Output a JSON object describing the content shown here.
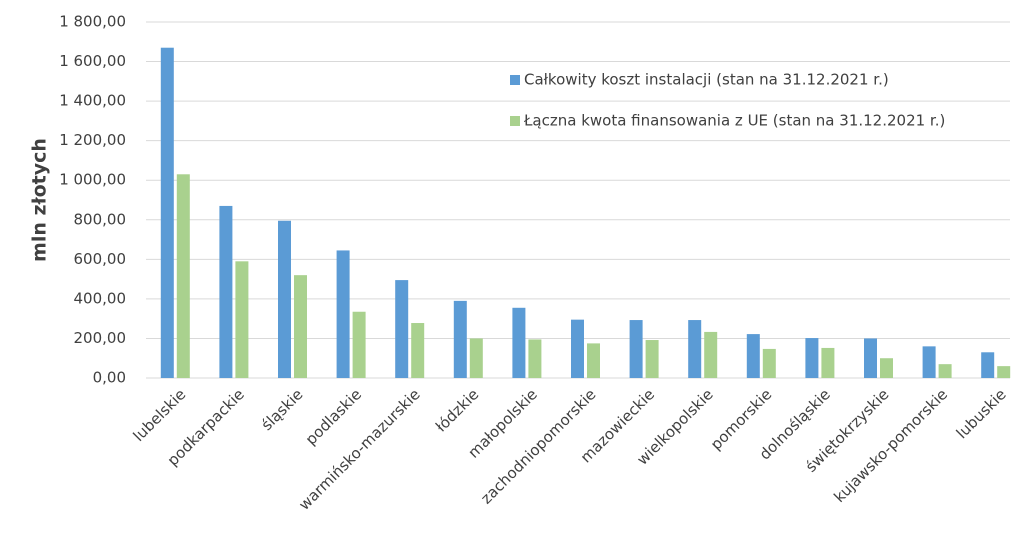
{
  "chart_data": {
    "type": "bar",
    "y_label": "mln złotych",
    "categories": [
      "lubelskie",
      "podkarpackie",
      "śląskie",
      "podlaskie",
      "warmińsko-mazurskie",
      "łódzkie",
      "małopolskie",
      "zachodniopomorskie",
      "mazowieckie",
      "wielkopolskie",
      "pomorskie",
      "dolnośląskie",
      "świętokrzyskie",
      "kujawsko-pomorskie",
      "lubuskie"
    ],
    "series": [
      {
        "name": "Całkowity koszt instalacji (stan na 31.12.2021 r.)",
        "color": "#5b9bd5",
        "values": [
          1670,
          870,
          795,
          645,
          495,
          390,
          355,
          295,
          293,
          293,
          222,
          202,
          200,
          160,
          130
        ]
      },
      {
        "name": "Łączna kwota finansowania z UE (stan na 31.12.2021 r.)",
        "color": "#a9d18e",
        "values": [
          1030,
          590,
          520,
          335,
          278,
          200,
          195,
          175,
          192,
          233,
          147,
          152,
          100,
          70,
          60
        ]
      }
    ],
    "ylim": [
      0,
      1800
    ],
    "yticks": [
      {
        "value": 0,
        "label": "0,00"
      },
      {
        "value": 200,
        "label": "200,00"
      },
      {
        "value": 400,
        "label": "400,00"
      },
      {
        "value": 600,
        "label": "600,00"
      },
      {
        "value": 800,
        "label": "800,00"
      },
      {
        "value": 1000,
        "label": "1 000,00"
      },
      {
        "value": 1200,
        "label": "1 200,00"
      },
      {
        "value": 1400,
        "label": "1 400,00"
      },
      {
        "value": 1600,
        "label": "1 600,00"
      },
      {
        "value": 1800,
        "label": "1 800,00"
      }
    ],
    "grid": true,
    "legend": "top-right"
  }
}
